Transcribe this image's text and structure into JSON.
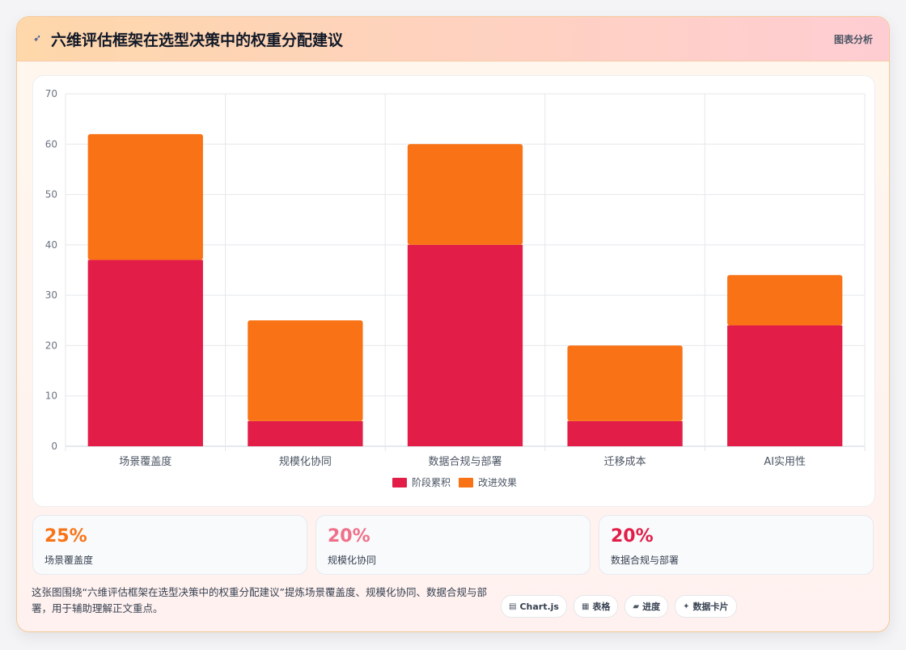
{
  "header": {
    "title": "六维评估框架在选型决策中的权重分配建议",
    "link_label": "图表分析",
    "icon": "rocket-icon"
  },
  "chart_data": {
    "type": "bar",
    "stacked": true,
    "categories": [
      "场景覆盖度",
      "规模化协同",
      "数据合规与部署",
      "迁移成本",
      "AI实用性"
    ],
    "series": [
      {
        "name": "阶段累积",
        "values": [
          37,
          5,
          40,
          5,
          24
        ],
        "color": "#e11d48"
      },
      {
        "name": "改进效果",
        "values": [
          25,
          20,
          20,
          15,
          10
        ],
        "color": "#f97316"
      }
    ],
    "ylim": [
      0,
      70
    ],
    "yticks": [
      0,
      10,
      20,
      30,
      40,
      50,
      60,
      70
    ],
    "grid": true,
    "legend": "bottom"
  },
  "stats": [
    {
      "value": "25%",
      "label": "场景覆盖度",
      "color": "#f97316"
    },
    {
      "value": "20%",
      "label": "规模化协同",
      "color": "#f0708a"
    },
    {
      "value": "20%",
      "label": "数据合规与部署",
      "color": "#e11d48"
    }
  ],
  "footnote": "这张图围绕“六维评估框架在选型决策中的权重分配建议”提炼场景覆盖度、规模化协同、数据合规与部署，用于辅助理解正文重点。",
  "chips": [
    {
      "label": "Chart.js",
      "icon": "chart-icon",
      "glyph": "▤"
    },
    {
      "label": "表格",
      "icon": "table-icon",
      "glyph": "▦"
    },
    {
      "label": "进度",
      "icon": "progress-icon",
      "glyph": "▰"
    },
    {
      "label": "数据卡片",
      "icon": "sparkle-icon",
      "glyph": "✦"
    }
  ]
}
